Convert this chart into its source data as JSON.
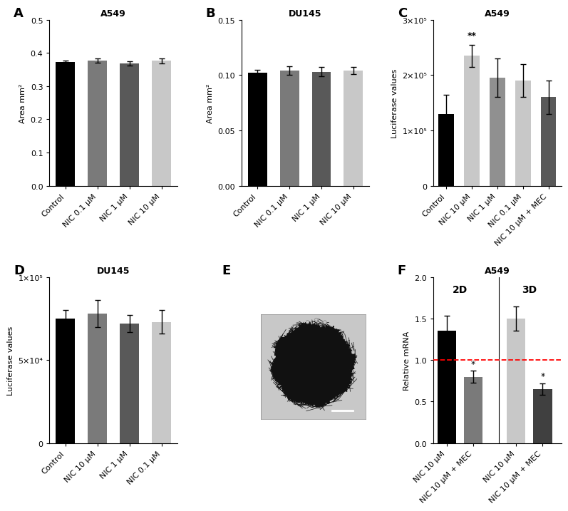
{
  "panel_A": {
    "title": "A549",
    "ylabel": "Area mm²",
    "panel_label": "A",
    "categories": [
      "Control",
      "NIC 0.1 μM",
      "NIC 1 μM",
      "NIC 10 μM"
    ],
    "values": [
      0.372,
      0.377,
      0.368,
      0.376
    ],
    "errors": [
      0.005,
      0.007,
      0.006,
      0.007
    ],
    "colors": [
      "#000000",
      "#7a7a7a",
      "#595959",
      "#c8c8c8"
    ],
    "ylim": [
      0.0,
      0.5
    ],
    "yticks": [
      0.0,
      0.1,
      0.2,
      0.3,
      0.4,
      0.5
    ]
  },
  "panel_B": {
    "title": "DU145",
    "ylabel": "Area mm²",
    "panel_label": "B",
    "categories": [
      "Control",
      "NIC 0.1 μM",
      "NIC 1 μM",
      "NIC 10 μM"
    ],
    "values": [
      0.102,
      0.104,
      0.103,
      0.104
    ],
    "errors": [
      0.003,
      0.004,
      0.004,
      0.003
    ],
    "colors": [
      "#000000",
      "#7a7a7a",
      "#595959",
      "#c8c8c8"
    ],
    "ylim": [
      0.0,
      0.15
    ],
    "yticks": [
      0.0,
      0.05,
      0.1,
      0.15
    ]
  },
  "panel_C": {
    "title": "A549",
    "ylabel": "Luciferase values",
    "panel_label": "C",
    "categories": [
      "Control",
      "NIC 10 μM",
      "NIC 1 μM",
      "NIC 0.1 μM",
      "NIC 10 μM + MEC"
    ],
    "values": [
      130000,
      235000,
      195000,
      190000,
      160000
    ],
    "errors": [
      35000,
      20000,
      35000,
      30000,
      30000
    ],
    "colors": [
      "#000000",
      "#c8c8c8",
      "#909090",
      "#c8c8c8",
      "#595959"
    ],
    "ylim": [
      0,
      300000
    ],
    "yticks": [
      0,
      100000,
      200000,
      300000
    ],
    "yticklabels": [
      "0",
      "1×10⁵",
      "2×10⁵",
      "3×10⁵"
    ],
    "significance": [
      "",
      "**",
      "",
      "",
      ""
    ]
  },
  "panel_D": {
    "title": "DU145",
    "ylabel": "Luciferase values",
    "panel_label": "D",
    "categories": [
      "Control",
      "NIC 10 μM",
      "NIC 1 μM",
      "NIC 0.1 μM"
    ],
    "values": [
      75000,
      78000,
      72000,
      73000
    ],
    "errors": [
      5000,
      8000,
      5000,
      7000
    ],
    "colors": [
      "#000000",
      "#7a7a7a",
      "#595959",
      "#c8c8c8"
    ],
    "ylim": [
      0,
      100000
    ],
    "yticks": [
      0,
      50000,
      100000
    ],
    "yticklabels": [
      "0",
      "5×10⁴",
      "1×10⁵"
    ]
  },
  "panel_F": {
    "title": "A549",
    "ylabel": "Relative mRNA",
    "panel_label": "F",
    "categories_2d": [
      "NIC 10 μM",
      "NIC 10 μM + MEC"
    ],
    "categories_3d": [
      "NIC 10 μM",
      "NIC 10 μM + MEC"
    ],
    "values_2d": [
      1.35,
      0.8
    ],
    "values_3d": [
      1.5,
      0.65
    ],
    "errors_2d": [
      0.18,
      0.07
    ],
    "errors_3d": [
      0.15,
      0.07
    ],
    "colors_2d": [
      "#000000",
      "#7a7a7a"
    ],
    "colors_3d": [
      "#c8c8c8",
      "#404040"
    ],
    "ylim": [
      0.0,
      2.0
    ],
    "yticks": [
      0.0,
      0.5,
      1.0,
      1.5,
      2.0
    ],
    "significance_2d": [
      "",
      "*"
    ],
    "significance_3d": [
      "",
      "*"
    ],
    "dashed_line_y": 1.0
  }
}
